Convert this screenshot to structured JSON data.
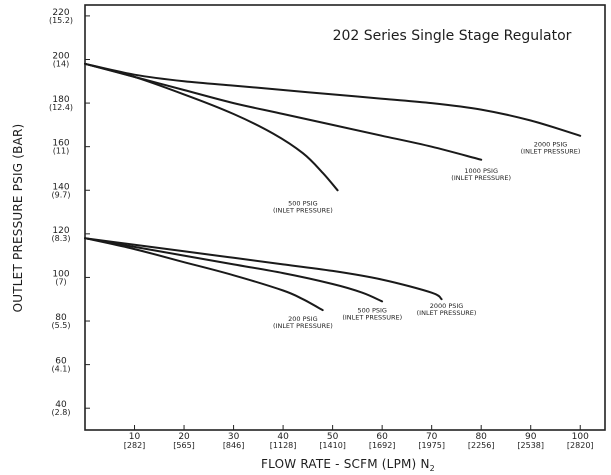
{
  "chart_data": {
    "type": "line",
    "title": "202 Series Single Stage Regulator",
    "xlabel": "FLOW RATE - SCFM (LPM) N",
    "xlabel_subscript": "2",
    "ylabel": "OUTLET PRESSURE PSIG (BAR)",
    "xlim": [
      0,
      105
    ],
    "ylim": [
      30,
      225
    ],
    "grid": false,
    "x_ticks": [
      {
        "value": 10,
        "label": "10",
        "sub": "[282]"
      },
      {
        "value": 20,
        "label": "20",
        "sub": "[565]"
      },
      {
        "value": 30,
        "label": "30",
        "sub": "[846]"
      },
      {
        "value": 40,
        "label": "40",
        "sub": "[1128]"
      },
      {
        "value": 50,
        "label": "50",
        "sub": "[1410]"
      },
      {
        "value": 60,
        "label": "60",
        "sub": "[1692]"
      },
      {
        "value": 70,
        "label": "70",
        "sub": "[1975]"
      },
      {
        "value": 80,
        "label": "80",
        "sub": "[2256]"
      },
      {
        "value": 90,
        "label": "90",
        "sub": "[2538]"
      },
      {
        "value": 100,
        "label": "100",
        "sub": "[2820]"
      }
    ],
    "y_ticks": [
      {
        "value": 40,
        "label": "40",
        "sub": "(2.8)"
      },
      {
        "value": 60,
        "label": "60",
        "sub": "(4.1)"
      },
      {
        "value": 80,
        "label": "80",
        "sub": "(5.5)"
      },
      {
        "value": 100,
        "label": "100",
        "sub": "(7)"
      },
      {
        "value": 120,
        "label": "120",
        "sub": "(8.3)"
      },
      {
        "value": 140,
        "label": "140",
        "sub": "(9.7)"
      },
      {
        "value": 160,
        "label": "160",
        "sub": "(11)"
      },
      {
        "value": 180,
        "label": "180",
        "sub": "(12.4)"
      },
      {
        "value": 200,
        "label": "200",
        "sub": "(14)"
      },
      {
        "value": 220,
        "label": "220",
        "sub": "(15.2)"
      }
    ],
    "series": [
      {
        "name": "500 PSIG INLET PRESSURE",
        "label_lines": [
          "500 PSIG",
          "(INLET PRESSURE)"
        ],
        "label_at": [
          44,
          133
        ],
        "x": [
          0,
          10,
          20,
          30,
          38,
          44,
          48,
          51
        ],
        "y": [
          198,
          192,
          184,
          175,
          166,
          157,
          148,
          140
        ]
      },
      {
        "name": "1000 PSIG INLET PRESSURE",
        "label_lines": [
          "1000 PSIG",
          "(INLET PRESSURE)"
        ],
        "label_at": [
          80,
          148
        ],
        "x": [
          0,
          10,
          20,
          30,
          40,
          50,
          60,
          70,
          80
        ],
        "y": [
          198,
          192,
          186,
          180,
          175,
          170,
          165,
          160,
          154
        ]
      },
      {
        "name": "2000 PSIG INLET PRESSURE",
        "label_lines": [
          "2000 PSIG",
          "(INLET PRESSURE)"
        ],
        "label_at": [
          94,
          160
        ],
        "x": [
          0,
          10,
          20,
          30,
          40,
          50,
          60,
          70,
          80,
          90,
          100
        ],
        "y": [
          198,
          193,
          190,
          188,
          186,
          184,
          182,
          180,
          177,
          172,
          165
        ]
      },
      {
        "name": "200 PSIG INLET PRESSURE",
        "label_lines": [
          "200 PSIG",
          "(INLET PRESSURE)"
        ],
        "label_at": [
          44,
          80
        ],
        "x": [
          0,
          10,
          20,
          30,
          40,
          44,
          48
        ],
        "y": [
          118,
          113,
          107,
          101,
          94,
          90,
          85
        ]
      },
      {
        "name": "500 PSIG INLET PRESSURE",
        "label_lines": [
          "500 PSIG",
          "(INLET PRESSURE)"
        ],
        "label_at": [
          58,
          84
        ],
        "x": [
          0,
          10,
          20,
          30,
          40,
          50,
          56,
          60
        ],
        "y": [
          118,
          114,
          110,
          106,
          102,
          97,
          93,
          89
        ]
      },
      {
        "name": "2000 PSIG INLET PRESSURE",
        "label_lines": [
          "2000 PSIG",
          "(INLET PRESSURE)"
        ],
        "label_at": [
          73,
          86
        ],
        "x": [
          0,
          10,
          20,
          30,
          40,
          50,
          60,
          70,
          72
        ],
        "y": [
          118,
          115,
          112,
          109,
          106,
          103,
          99,
          93,
          90
        ]
      }
    ]
  }
}
